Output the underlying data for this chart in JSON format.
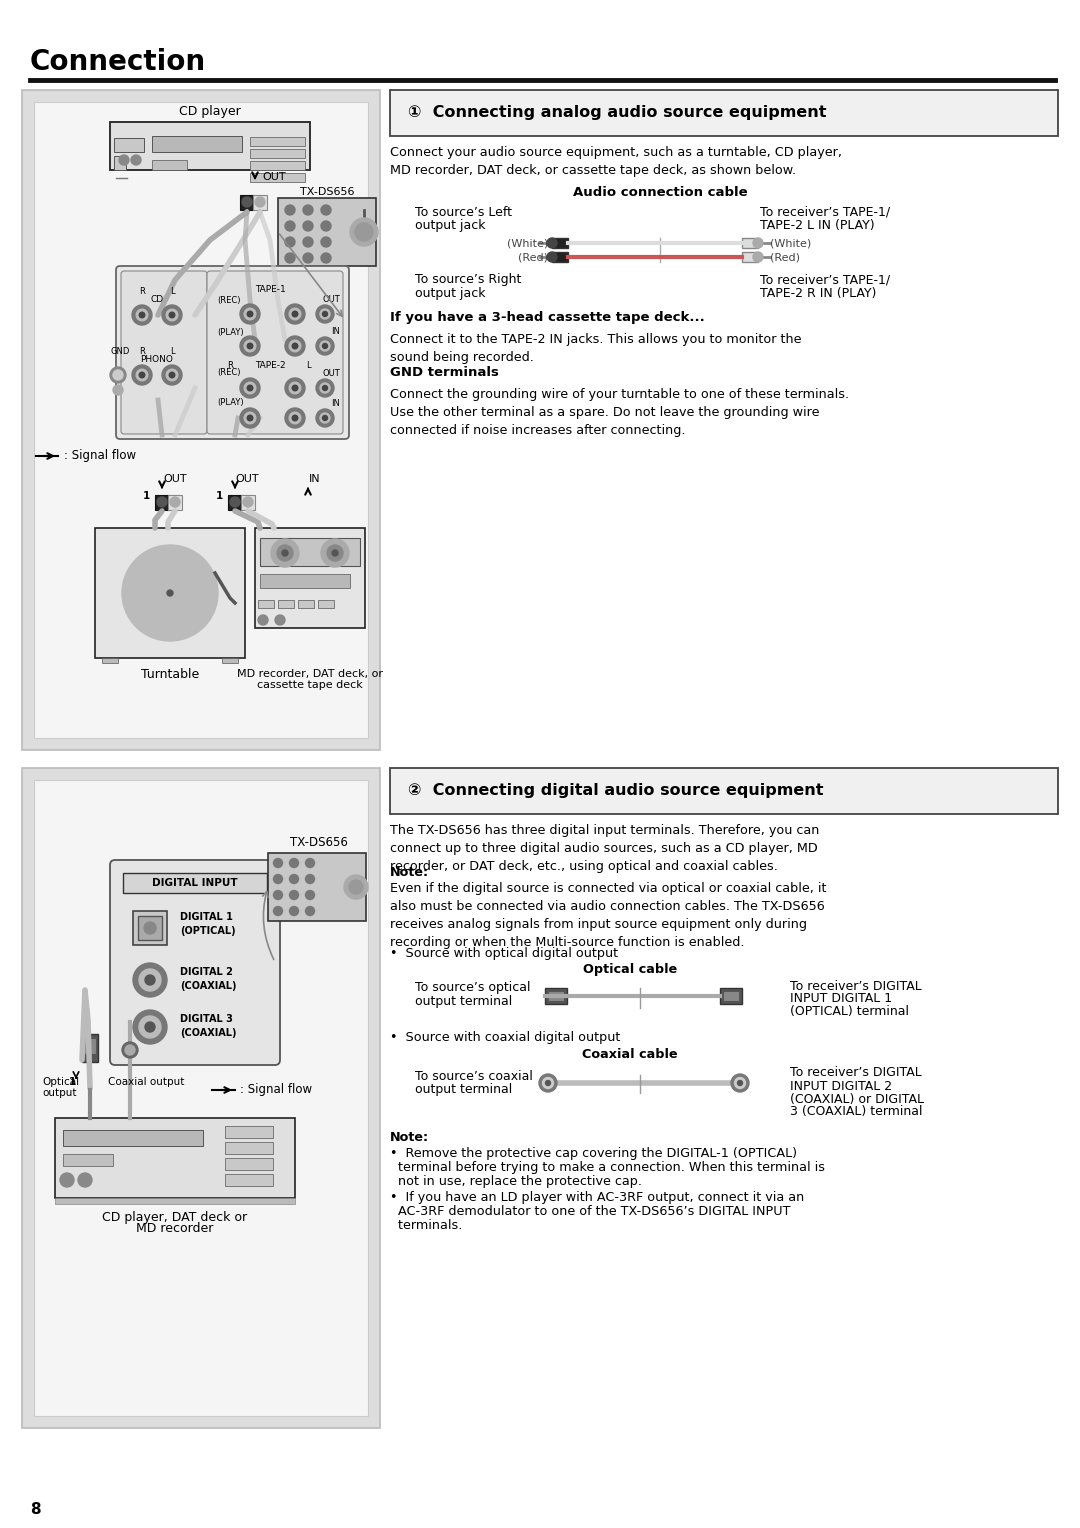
{
  "page_number": "8",
  "title": "Connection",
  "bg_color": "#ffffff",
  "panel1_bg": "#e8e8e8",
  "panel1_inner": "#f8f8f8",
  "panel2_bg": "#e8e8e8",
  "panel2_inner": "#f8f8f8",
  "section1_header": "①  Connecting analog audio source equipment",
  "section1_intro": "Connect your audio source equipment, such as a turntable, CD player,\nMD recorder, DAT deck, or cassette tape deck, as shown below.",
  "audio_cable_title": "Audio connection cable",
  "left_label1": "To source’s Left",
  "left_label2": "output jack",
  "right_label1": "To receiver’s TAPE-1/",
  "right_label2": "TAPE-2 L IN (PLAY)",
  "white_label": "(White)",
  "red_label": "(Red)",
  "right_white_label": "(White)",
  "right_red_label": "(Red)",
  "left_label3": "To source’s Right",
  "left_label4": "output jack",
  "right_label3": "To receiver’s TAPE-1/",
  "right_label4": "TAPE-2 R IN (PLAY)",
  "subhead1": "If you have a 3-head cassette tape deck...",
  "subhead1_text": "Connect it to the TAPE-2 IN jacks. This allows you to monitor the\nsound being recorded.",
  "subhead2": "GND terminals",
  "subhead2_text": "Connect the grounding wire of your turntable to one of these terminals.\nUse the other terminal as a spare. Do not leave the grounding wire\nconnected if noise increases after connecting.",
  "section2_header": "②  Connecting digital audio source equipment",
  "section2_intro": "The TX-DS656 has three digital input terminals. Therefore, you can\nconnect up to three digital audio sources, such as a CD player, MD\nrecorder, or DAT deck, etc., using optical and coaxial cables.",
  "note1_title": "Note:",
  "note1_text": "Even if the digital source is connected via optical or coaxial cable, it\nalso must be connected via audio connection cables. The TX-DS656\nreceives analog signals from input source equipment only during\nrecording or when the Multi-source function is enabled.",
  "bullet1_header": "•  Source with optical digital output",
  "optical_cable_title": "Optical cable",
  "optical_left1": "To source’s optical",
  "optical_left2": "output terminal",
  "optical_right1": "To receiver’s DIGITAL",
  "optical_right2": "INPUT DIGITAL 1",
  "optical_right3": "(OPTICAL) terminal",
  "bullet2_header": "•  Source with coaxial digital output",
  "coaxial_cable_title": "Coaxial cable",
  "coaxial_left1": "To source’s coaxial",
  "coaxial_left2": "output terminal",
  "coaxial_right1": "To receiver’s DIGITAL",
  "coaxial_right2": "INPUT DIGITAL 2",
  "coaxial_right3": "(COAXIAL) or DIGITAL",
  "coaxial_right4": "3 (COAXIAL) terminal",
  "note2_title": "Note:",
  "note2_b1a": "  Remove the protective cap covering the DIGITAL-1 (OPTICAL)",
  "note2_b1b": "  terminal before trying to make a connection. When this terminal is",
  "note2_b1c": "  not in use, replace the protective cap.",
  "note2_b2a": "  If you have an LD player with AC-3RF output, connect it via an",
  "note2_b2b": "  AC-3RF demodulator to one of the TX-DS656’s DIGITAL INPUT",
  "note2_b2c": "  terminals.",
  "cd_player_label": "CD player",
  "tx_ds656_label": "TX-DS656",
  "out_label": "OUT",
  "signal_flow_label": ": Signal flow",
  "out1_label": "OUT",
  "out2_label": "OUT",
  "in_label": "IN",
  "turntable_label": "Turntable",
  "md_label1": "MD recorder, DAT deck, or",
  "md_label2": "cassette tape deck",
  "digital_input_label": "DIGITAL INPUT",
  "dig1_label1": "DIGITAL 1",
  "dig1_label2": "(OPTICAL)",
  "dig2_label1": "DIGITAL 2",
  "dig2_label2": "(COAXIAL)",
  "dig3_label1": "DIGITAL 3",
  "dig3_label2": "(COAXIAL)",
  "tx_ds656_label2": "TX-DS656",
  "optical_out_label1": "Optical",
  "optical_out_label2": "output",
  "coaxial_out_label": "Coaxial output",
  "signal_flow_label2": ": Signal flow",
  "cd_dat_label1": "CD player, DAT deck or",
  "cd_dat_label2": "MD recorder"
}
